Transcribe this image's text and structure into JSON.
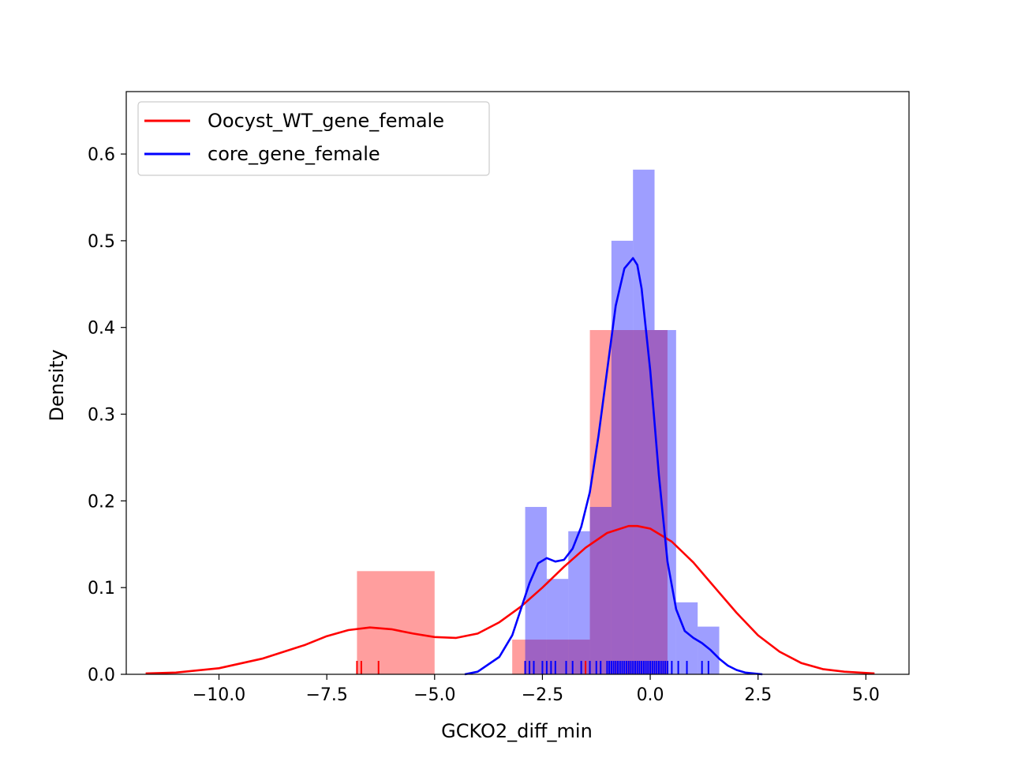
{
  "chart_data": {
    "type": "histogram+kde",
    "xlabel": "GCKO2_diff_min",
    "ylabel": "Density",
    "xlim": [
      -12.15,
      6.0
    ],
    "ylim": [
      0,
      0.672
    ],
    "xticks": [
      -10.0,
      -7.5,
      -5.0,
      -2.5,
      0.0,
      2.5,
      5.0
    ],
    "xtick_labels": [
      "−10.0",
      "−7.5",
      "−5.0",
      "−2.5",
      "0.0",
      "2.5",
      "5.0"
    ],
    "yticks": [
      0.0,
      0.1,
      0.2,
      0.3,
      0.4,
      0.5,
      0.6
    ],
    "ytick_labels": [
      "0.0",
      "0.1",
      "0.2",
      "0.3",
      "0.4",
      "0.5",
      "0.6"
    ],
    "legend": {
      "placement": "upper-left"
    },
    "series": [
      {
        "name": "Oocyst_WT_gene_female",
        "color": "#ff0000",
        "hist_alpha": 0.38,
        "bins": [
          {
            "x0": -6.8,
            "x1": -5.0,
            "density": 0.119
          },
          {
            "x0": -5.0,
            "x1": -3.2,
            "density": 0.0
          },
          {
            "x0": -3.2,
            "x1": -1.4,
            "density": 0.04
          },
          {
            "x0": -1.4,
            "x1": 0.4,
            "density": 0.397
          }
        ],
        "kde": {
          "x": [
            -11.7,
            -11.0,
            -10.0,
            -9.0,
            -8.0,
            -7.5,
            -7.0,
            -6.5,
            -6.0,
            -5.5,
            -5.0,
            -4.5,
            -4.0,
            -3.5,
            -3.0,
            -2.5,
            -2.0,
            -1.5,
            -1.0,
            -0.5,
            -0.3,
            0.0,
            0.5,
            1.0,
            1.5,
            2.0,
            2.5,
            3.0,
            3.5,
            4.0,
            4.5,
            5.2
          ],
          "y": [
            0.001,
            0.002,
            0.007,
            0.018,
            0.034,
            0.044,
            0.051,
            0.054,
            0.052,
            0.047,
            0.043,
            0.042,
            0.047,
            0.06,
            0.078,
            0.1,
            0.124,
            0.146,
            0.163,
            0.171,
            0.171,
            0.168,
            0.153,
            0.129,
            0.1,
            0.071,
            0.045,
            0.026,
            0.013,
            0.006,
            0.003,
            0.001
          ]
        },
        "rug": [
          -6.8,
          -6.7,
          -6.3,
          -2.9,
          -1.5,
          -0.8,
          -0.5,
          0.3,
          0.4
        ]
      },
      {
        "name": "core_gene_female",
        "color": "#0000ff",
        "hist_alpha": 0.38,
        "bins": [
          {
            "x0": -2.9,
            "x1": -2.4,
            "density": 0.193
          },
          {
            "x0": -2.4,
            "x1": -1.9,
            "density": 0.11
          },
          {
            "x0": -1.9,
            "x1": -1.4,
            "density": 0.165
          },
          {
            "x0": -1.4,
            "x1": -0.9,
            "density": 0.193
          },
          {
            "x0": -0.9,
            "x1": -0.4,
            "density": 0.5
          },
          {
            "x0": -0.4,
            "x1": 0.1,
            "density": 0.582
          },
          {
            "x0": 0.1,
            "x1": 0.6,
            "density": 0.397
          },
          {
            "x0": 0.6,
            "x1": 1.1,
            "density": 0.083
          },
          {
            "x0": 1.1,
            "x1": 1.6,
            "density": 0.055
          }
        ],
        "kde": {
          "x": [
            -4.3,
            -4.0,
            -3.5,
            -3.2,
            -3.0,
            -2.8,
            -2.6,
            -2.4,
            -2.2,
            -2.0,
            -1.8,
            -1.6,
            -1.4,
            -1.2,
            -1.0,
            -0.8,
            -0.6,
            -0.4,
            -0.3,
            -0.2,
            0.0,
            0.2,
            0.4,
            0.6,
            0.8,
            1.0,
            1.2,
            1.4,
            1.6,
            1.8,
            2.0,
            2.2,
            2.4,
            2.6
          ],
          "y": [
            0.0,
            0.003,
            0.02,
            0.045,
            0.075,
            0.105,
            0.128,
            0.134,
            0.13,
            0.132,
            0.145,
            0.17,
            0.21,
            0.275,
            0.35,
            0.425,
            0.468,
            0.48,
            0.472,
            0.445,
            0.35,
            0.23,
            0.13,
            0.075,
            0.05,
            0.042,
            0.036,
            0.028,
            0.018,
            0.01,
            0.005,
            0.002,
            0.001,
            0.0
          ]
        },
        "rug": [
          -2.9,
          -2.8,
          -2.7,
          -2.5,
          -2.4,
          -2.3,
          -2.2,
          -1.95,
          -1.8,
          -1.6,
          -1.4,
          -1.25,
          -1.15,
          -1.0,
          -0.95,
          -0.9,
          -0.85,
          -0.8,
          -0.75,
          -0.7,
          -0.65,
          -0.6,
          -0.55,
          -0.5,
          -0.45,
          -0.4,
          -0.35,
          -0.3,
          -0.25,
          -0.2,
          -0.15,
          -0.1,
          -0.05,
          0.0,
          0.05,
          0.1,
          0.15,
          0.2,
          0.25,
          0.3,
          0.35,
          0.4,
          0.5,
          0.65,
          0.85,
          1.2,
          1.35
        ]
      }
    ]
  }
}
